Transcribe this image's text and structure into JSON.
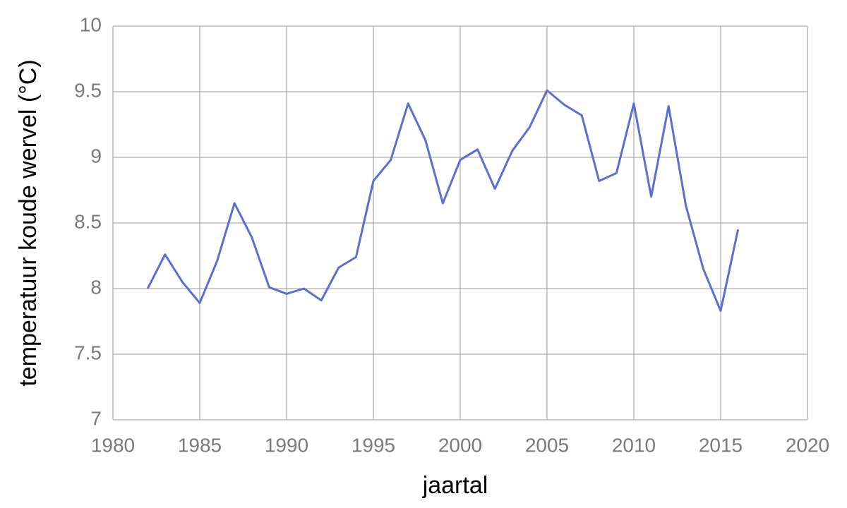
{
  "chart_data": {
    "type": "line",
    "xlabel": "jaartal",
    "ylabel": "temperatuur koude wervel (°C)",
    "x": [
      1982,
      1983,
      1984,
      1985,
      1986,
      1987,
      1988,
      1989,
      1990,
      1991,
      1992,
      1993,
      1994,
      1995,
      1996,
      1997,
      1998,
      1999,
      2000,
      2001,
      2002,
      2003,
      2004,
      2005,
      2006,
      2007,
      2008,
      2009,
      2010,
      2011,
      2012,
      2013,
      2014,
      2015,
      2016
    ],
    "values": [
      8.0,
      8.26,
      8.05,
      7.89,
      8.21,
      8.65,
      8.39,
      8.01,
      7.96,
      8.0,
      7.91,
      8.16,
      8.24,
      8.82,
      8.98,
      9.41,
      9.13,
      8.65,
      8.98,
      9.06,
      8.76,
      9.05,
      9.23,
      9.51,
      9.4,
      9.32,
      8.82,
      8.88,
      9.41,
      8.7,
      9.39,
      8.63,
      8.15,
      7.83,
      8.45
    ],
    "color": "#5a6fd6",
    "xlim": [
      1980,
      2020
    ],
    "xticks": [
      1980,
      1985,
      1990,
      1995,
      2000,
      2005,
      2010,
      2015,
      2020
    ],
    "ylim": [
      7,
      10
    ],
    "yticks": [
      7,
      7.5,
      8,
      8.5,
      9,
      9.5,
      10
    ],
    "grid": true
  }
}
